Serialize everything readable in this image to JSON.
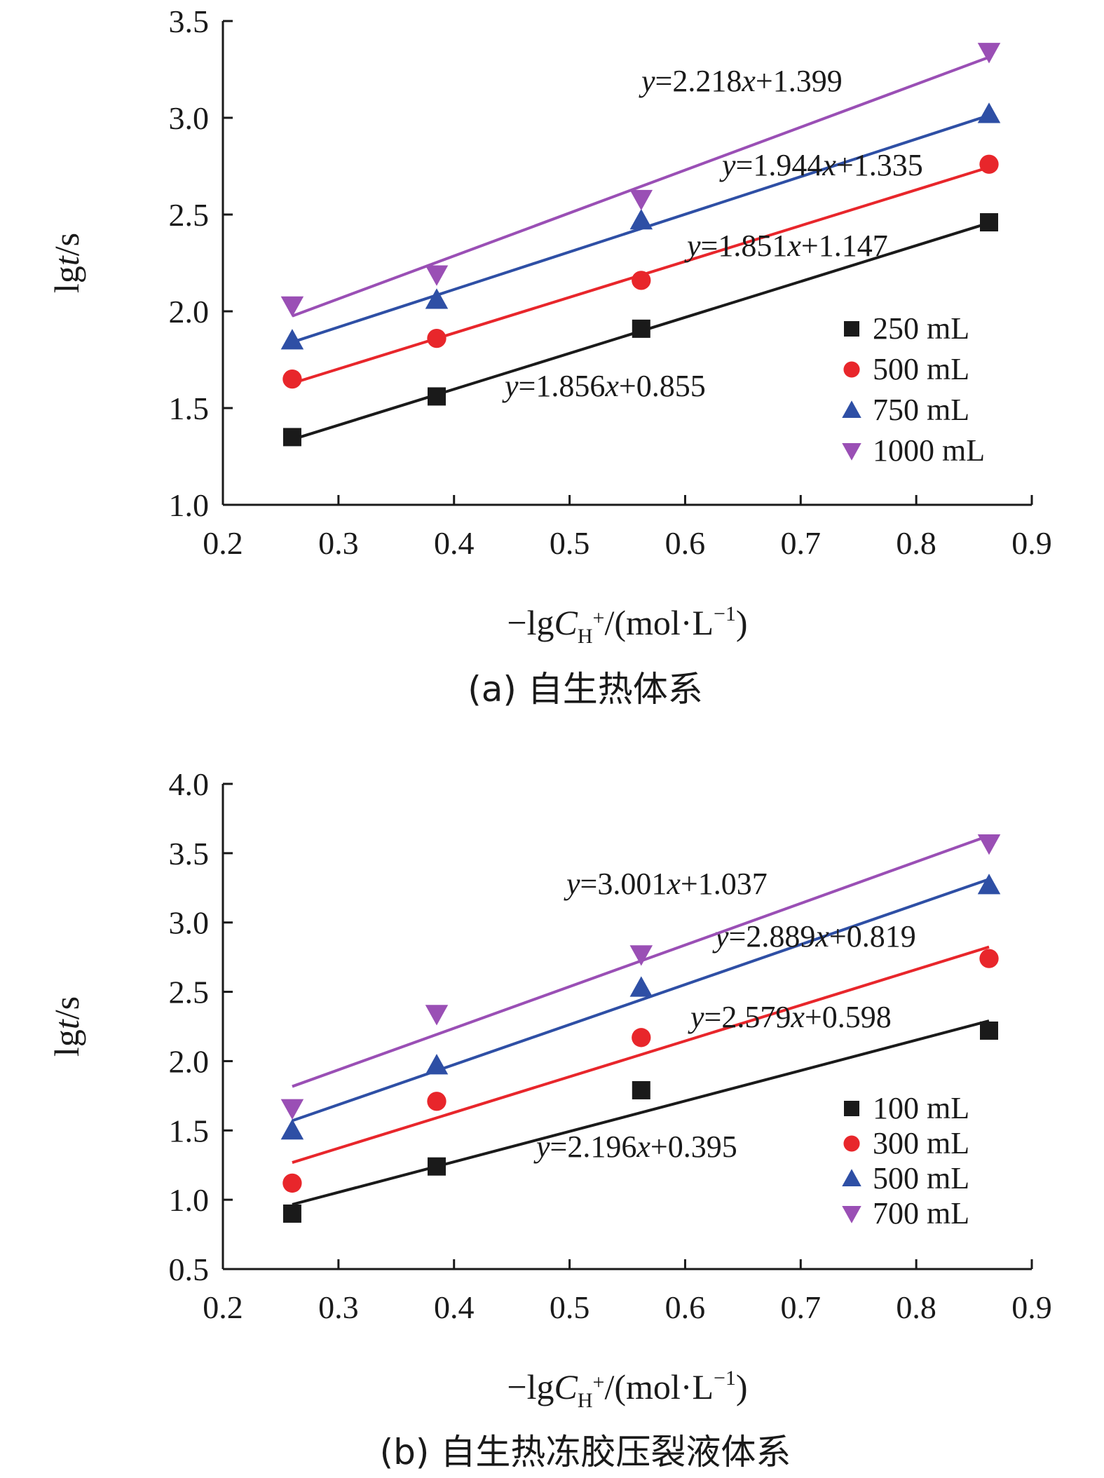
{
  "chart_data": [
    {
      "type": "scatter",
      "caption": "(a) 自生热体系",
      "xlabel": "−lgC_H+/(mol·L−1)",
      "xlabel_parts": {
        "prefix": "−lg",
        "var": "C",
        "sub": "H",
        "sup_sub": "+",
        "unit_open": "/(mol·L",
        "exp": "−1",
        "unit_close": ")"
      },
      "ylabel": "lgt/s",
      "ylabel_parts": {
        "prefix": "lg",
        "var": "t",
        "suffix": "/s"
      },
      "xlim": [
        0.2,
        0.9
      ],
      "ylim": [
        1.0,
        3.5
      ],
      "xticks": [
        "0.2",
        "0.3",
        "0.4",
        "0.5",
        "0.6",
        "0.7",
        "0.8",
        "0.9"
      ],
      "yticks": [
        "1.0",
        "1.5",
        "2.0",
        "2.5",
        "3.0",
        "3.5"
      ],
      "x": [
        0.26,
        0.385,
        0.562,
        0.863
      ],
      "legend_position": "right",
      "series": [
        {
          "name": "250 mL",
          "marker": "square",
          "color": "#1a1a1a",
          "y": [
            1.35,
            1.56,
            1.91,
            2.46
          ],
          "fit": {
            "slope": 1.856,
            "intercept": 0.855,
            "label": "y=1.856x+0.855"
          }
        },
        {
          "name": "500 mL",
          "marker": "circle",
          "color": "#e8262b",
          "y": [
            1.65,
            1.86,
            2.16,
            2.76
          ],
          "fit": {
            "slope": 1.851,
            "intercept": 1.147,
            "label": "y=1.851x+1.147"
          }
        },
        {
          "name": "750 mL",
          "marker": "triangle-up",
          "color": "#2e4fa5",
          "y": [
            1.85,
            2.06,
            2.47,
            3.02
          ],
          "fit": {
            "slope": 1.944,
            "intercept": 1.335,
            "label": "y=1.944x+1.335"
          }
        },
        {
          "name": "1000 mL",
          "marker": "triangle-down",
          "color": "#9a4fb5",
          "y": [
            2.03,
            2.19,
            2.58,
            3.34
          ],
          "fit": {
            "slope": 2.218,
            "intercept": 1.399,
            "label": "y=2.218x+1.399"
          }
        }
      ]
    },
    {
      "type": "scatter",
      "caption": "(b) 自生热冻胶压裂液体系",
      "xlabel": "−lgC_H+/(mol·L−1)",
      "xlabel_parts": {
        "prefix": "−lg",
        "var": "C",
        "sub": "H",
        "sup_sub": "+",
        "unit_open": "/(mol·L",
        "exp": "−1",
        "unit_close": ")"
      },
      "ylabel": "lgt/s",
      "ylabel_parts": {
        "prefix": "lg",
        "var": "t",
        "suffix": "/s"
      },
      "xlim": [
        0.2,
        0.9
      ],
      "ylim": [
        0.5,
        4.0
      ],
      "xticks": [
        "0.2",
        "0.3",
        "0.4",
        "0.5",
        "0.6",
        "0.7",
        "0.8",
        "0.9"
      ],
      "yticks": [
        "0.5",
        "1.0",
        "1.5",
        "2.0",
        "2.5",
        "3.0",
        "3.5",
        "4.0"
      ],
      "x": [
        0.26,
        0.385,
        0.562,
        0.863
      ],
      "legend_position": "right",
      "series": [
        {
          "name": "100 mL",
          "marker": "square",
          "color": "#1a1a1a",
          "y": [
            0.9,
            1.24,
            1.79,
            2.22
          ],
          "fit": {
            "slope": 2.196,
            "intercept": 0.395,
            "label": "y=2.196x+0.395"
          }
        },
        {
          "name": "300 mL",
          "marker": "circle",
          "color": "#e8262b",
          "y": [
            1.12,
            1.71,
            2.17,
            2.74
          ],
          "fit": {
            "slope": 2.579,
            "intercept": 0.598,
            "label": "y=2.579x+0.598"
          }
        },
        {
          "name": "500 mL",
          "marker": "triangle-up",
          "color": "#2e4fa5",
          "y": [
            1.5,
            1.97,
            2.53,
            3.27
          ],
          "fit": {
            "slope": 2.889,
            "intercept": 0.819,
            "label": "y=2.889x+0.819"
          }
        },
        {
          "name": "700 mL",
          "marker": "triangle-down",
          "color": "#9a4fb5",
          "y": [
            1.66,
            2.34,
            2.77,
            3.57
          ],
          "fit": {
            "slope": 3.001,
            "intercept": 1.037,
            "label": "y=3.001x+1.037"
          }
        }
      ]
    }
  ]
}
